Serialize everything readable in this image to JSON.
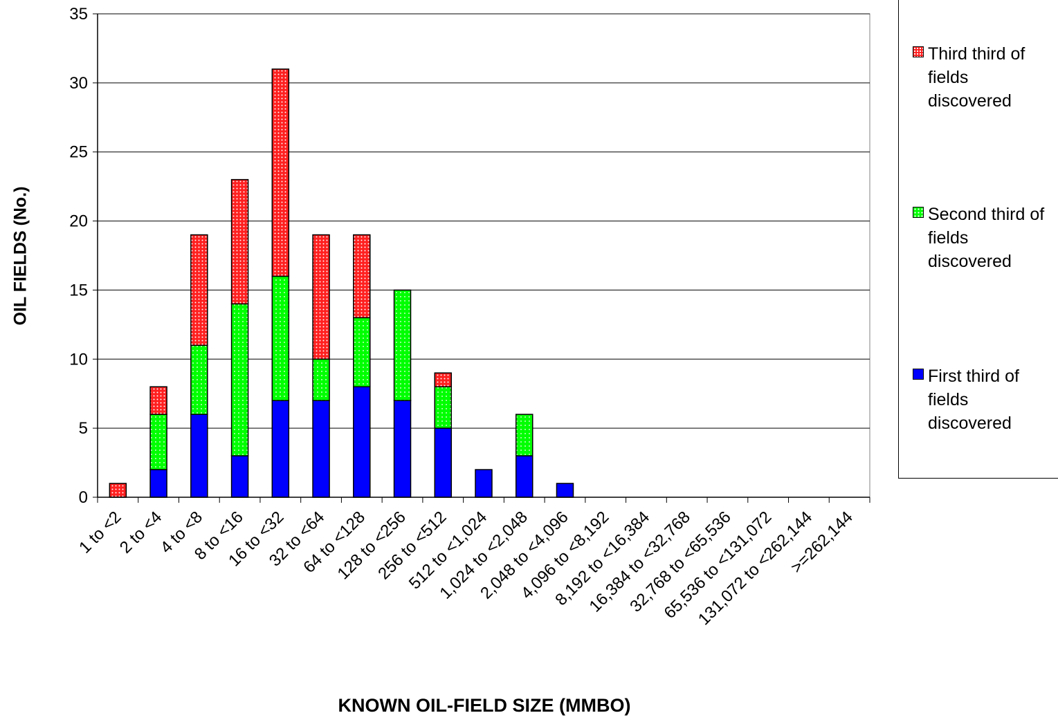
{
  "chart_data": {
    "type": "bar",
    "stacked": true,
    "xlabel": "KNOWN OIL-FIELD SIZE (MMBO)",
    "ylabel": "OIL FIELDS (No.)",
    "ylim": [
      0,
      35
    ],
    "yticks": [
      0,
      5,
      10,
      15,
      20,
      25,
      30,
      35
    ],
    "grid": true,
    "legend_position": "right",
    "categories": [
      "1 to <2",
      "2 to <4",
      "4 to <8",
      "8 to <16",
      "16 to <32",
      "32 to <64",
      "64 to <128",
      "128 to <256",
      "256 to <512",
      "512 to <1,024",
      "1,024 to <2,048",
      "2,048 to <4,096",
      "4,096 to <8,192",
      "8,192 to <16,384",
      "16,384 to <32,768",
      "32,768 to <65,536",
      "65,536 to <131,072",
      "131,072 to <262,144",
      ">=262,144"
    ],
    "series": [
      {
        "name": "First third of fields discovered",
        "color": "#0000ff",
        "values": [
          0,
          2,
          6,
          3,
          7,
          7,
          8,
          7,
          5,
          2,
          3,
          1,
          0,
          0,
          0,
          0,
          0,
          0,
          0
        ]
      },
      {
        "name": "Second third of fields discovered",
        "color": "#00ff00",
        "values": [
          0,
          4,
          5,
          11,
          9,
          3,
          5,
          8,
          3,
          0,
          3,
          0,
          0,
          0,
          0,
          0,
          0,
          0,
          0
        ]
      },
      {
        "name": "Third third of fields discovered",
        "color": "#ff2020",
        "values": [
          1,
          2,
          8,
          9,
          15,
          9,
          6,
          0,
          1,
          0,
          0,
          0,
          0,
          0,
          0,
          0,
          0,
          0,
          0
        ]
      }
    ]
  },
  "legend": {
    "third": "Third third of fields discovered",
    "second": "Second third of fields discovered",
    "first": "First third of fields discovered"
  }
}
